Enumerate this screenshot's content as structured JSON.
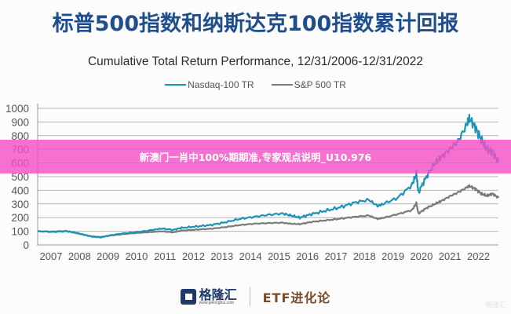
{
  "header": {
    "title": "标普500指数和纳斯达克100指数累计回报"
  },
  "overlay": {
    "text": "新澳门一肖中100%期期准,专家观点说明_U10.976"
  },
  "footer": {
    "brand_name": "格隆汇",
    "brand_url": "www.gelonghui.com",
    "column_name": "ETF进化论",
    "watermark": "格隆汇"
  },
  "colors": {
    "nasdaq": "#1f93b5",
    "sp500": "#7a7a7a",
    "title": "#1f4e8c",
    "overlay": "#f450c4"
  },
  "chart_data": {
    "type": "line",
    "title": "Cumulative Total Return Performance, 12/31/2006-12/31/2022",
    "xlabel": "",
    "ylabel": "",
    "ylim": [
      0,
      1000
    ],
    "yticks": [
      0,
      100,
      200,
      300,
      400,
      500,
      600,
      700,
      800,
      900,
      1000
    ],
    "xticks": [
      "2007",
      "2008",
      "2009",
      "2010",
      "2011",
      "2012",
      "2013",
      "2014",
      "2015",
      "2016",
      "2017",
      "2018",
      "2019",
      "2020",
      "2021",
      "2022"
    ],
    "grid": true,
    "legend_position": "top",
    "x": [
      2007.0,
      2007.5,
      2008.0,
      2008.3,
      2008.6,
      2008.9,
      2009.2,
      2009.5,
      2010.0,
      2010.5,
      2011.0,
      2011.3,
      2011.7,
      2012.0,
      2012.5,
      2013.0,
      2013.5,
      2014.0,
      2014.5,
      2015.0,
      2015.5,
      2015.8,
      2016.1,
      2016.5,
      2017.0,
      2017.5,
      2018.0,
      2018.5,
      2018.8,
      2019.0,
      2019.5,
      2020.0,
      2020.15,
      2020.22,
      2020.5,
      2020.8,
      2021.0,
      2021.3,
      2021.6,
      2021.9,
      2022.0,
      2022.2,
      2022.4,
      2022.6,
      2022.8,
      2023.0
    ],
    "series": [
      {
        "name": "Nasdaq-100 TR",
        "values": [
          100,
          95,
          100,
          90,
          75,
          60,
          55,
          70,
          85,
          95,
          110,
          120,
          110,
          125,
          135,
          145,
          165,
          190,
          205,
          220,
          230,
          215,
          200,
          225,
          250,
          275,
          310,
          330,
          285,
          300,
          345,
          440,
          520,
          385,
          500,
          600,
          640,
          700,
          760,
          880,
          925,
          860,
          770,
          700,
          680,
          605
        ]
      },
      {
        "name": "S&P 500 TR",
        "values": [
          100,
          98,
          102,
          88,
          75,
          62,
          58,
          68,
          80,
          88,
          95,
          100,
          92,
          105,
          112,
          118,
          130,
          145,
          155,
          160,
          163,
          155,
          152,
          168,
          180,
          192,
          205,
          215,
          190,
          198,
          225,
          255,
          305,
          230,
          270,
          300,
          320,
          355,
          385,
          420,
          430,
          410,
          375,
          360,
          375,
          345
        ]
      }
    ]
  }
}
